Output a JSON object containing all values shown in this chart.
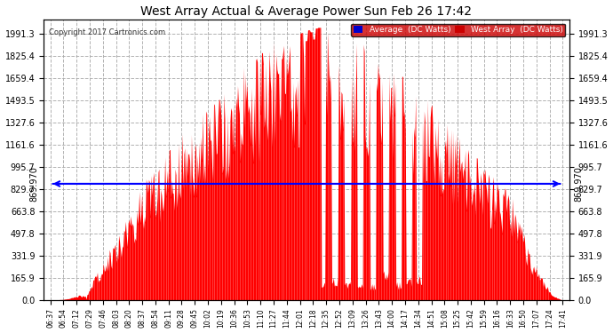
{
  "title": "West Array Actual & Average Power Sun Feb 26 17:42",
  "copyright": "Copyright 2017 Cartronics.com",
  "legend_avg": "Average  (DC Watts)",
  "legend_west": "West Array  (DC Watts)",
  "avg_value": 869.97,
  "yticks": [
    0.0,
    165.9,
    331.9,
    497.8,
    663.8,
    829.7,
    995.7,
    1161.6,
    1327.6,
    1493.5,
    1659.4,
    1825.4,
    1991.3
  ],
  "ymax": 2100,
  "ymin": 0,
  "bg_color": "#ffffff",
  "plot_bg_color": "#ffffff",
  "fill_color": "#ff0000",
  "avg_line_color": "#0000ff",
  "grid_color": "#aaaaaa",
  "title_color": "#000000",
  "x_labels": [
    "06:37",
    "06:54",
    "07:12",
    "07:29",
    "07:46",
    "08:03",
    "08:20",
    "08:37",
    "08:54",
    "09:11",
    "09:28",
    "09:45",
    "10:02",
    "10:19",
    "10:36",
    "10:53",
    "11:10",
    "11:27",
    "11:44",
    "12:01",
    "12:18",
    "12:35",
    "12:52",
    "13:09",
    "13:26",
    "13:43",
    "14:00",
    "14:17",
    "14:34",
    "14:51",
    "15:08",
    "15:25",
    "15:42",
    "15:59",
    "16:16",
    "16:33",
    "16:50",
    "17:07",
    "17:24",
    "17:41"
  ]
}
